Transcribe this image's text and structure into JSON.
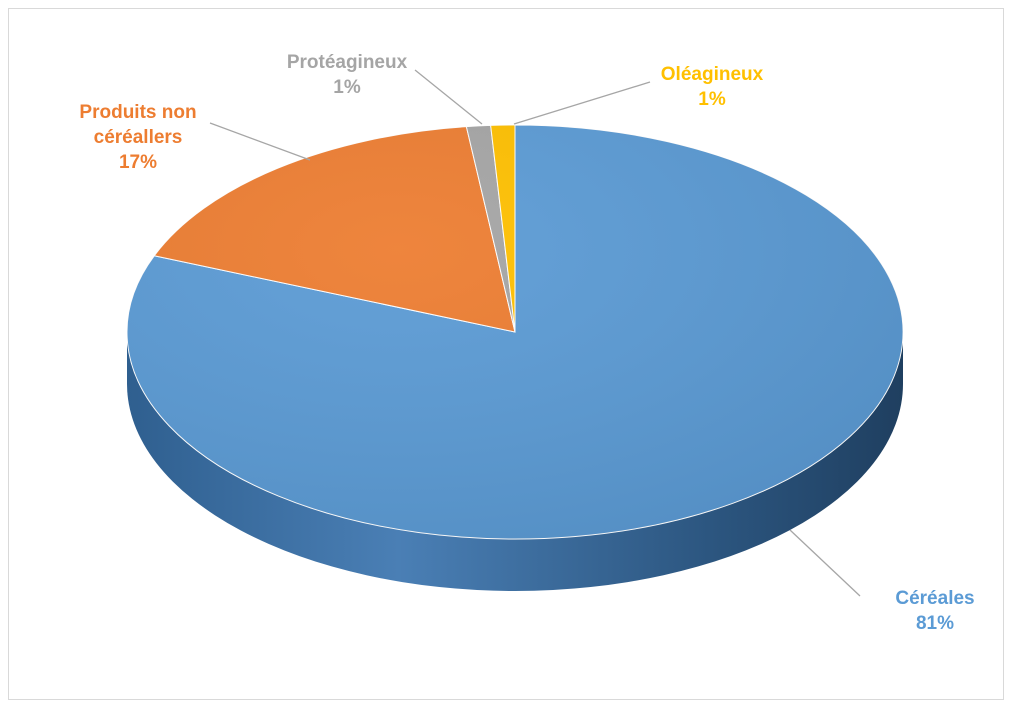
{
  "chart_data": {
    "type": "pie",
    "style": "3d",
    "slices": [
      {
        "name": "Céréales",
        "value": 81,
        "label_lines": [
          "Céréales"
        ],
        "pct_label": "81%",
        "color": "#5b9bd5",
        "label_color": "#5b9bd5"
      },
      {
        "name": "Produits non céréallers",
        "value": 17,
        "label_lines": [
          "Produits non",
          "céréallers"
        ],
        "pct_label": "17%",
        "color": "#ed7d31",
        "label_color": "#ed7d31"
      },
      {
        "name": "Protéagineux",
        "value": 1,
        "label_lines": [
          "Protéagineux"
        ],
        "pct_label": "1%",
        "color": "#a5a5a5",
        "label_color": "#a5a5a5"
      },
      {
        "name": "Oléagineux",
        "value": 1,
        "label_lines": [
          "Oléagineux"
        ],
        "pct_label": "1%",
        "color": "#ffc000",
        "label_color": "#ffc000"
      }
    ],
    "legend": "none"
  }
}
